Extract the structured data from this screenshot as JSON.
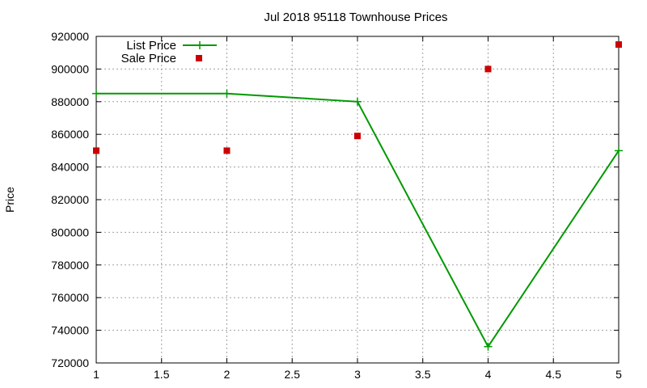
{
  "chart_data": {
    "type": "line",
    "title": "Jul 2018 95118 Townhouse Prices",
    "xlabel": "",
    "ylabel": "Price",
    "xlim": [
      1,
      5
    ],
    "ylim": [
      720000,
      920000
    ],
    "x_ticks": [
      "1",
      "1.5",
      "2",
      "2.5",
      "3",
      "3.5",
      "4",
      "4.5",
      "5"
    ],
    "x_tick_values": [
      1,
      1.5,
      2,
      2.5,
      3,
      3.5,
      4,
      4.5,
      5
    ],
    "y_ticks": [
      "720000",
      "740000",
      "760000",
      "780000",
      "800000",
      "820000",
      "840000",
      "860000",
      "880000",
      "900000",
      "920000"
    ],
    "y_tick_values": [
      720000,
      740000,
      760000,
      780000,
      800000,
      820000,
      840000,
      860000,
      880000,
      900000,
      920000
    ],
    "grid": true,
    "legend_position": "top-left",
    "series": [
      {
        "name": "List Price",
        "kind": "line-points",
        "color": "#009900",
        "marker": "plus",
        "x": [
          1,
          2,
          3,
          4,
          5
        ],
        "values": [
          885000,
          885000,
          880000,
          730000,
          850000
        ]
      },
      {
        "name": "Sale Price",
        "kind": "points",
        "color": "#cc0000",
        "marker": "square",
        "x": [
          1,
          2,
          3,
          4,
          5
        ],
        "values": [
          850000,
          850000,
          859000,
          900000,
          915000
        ]
      }
    ]
  }
}
